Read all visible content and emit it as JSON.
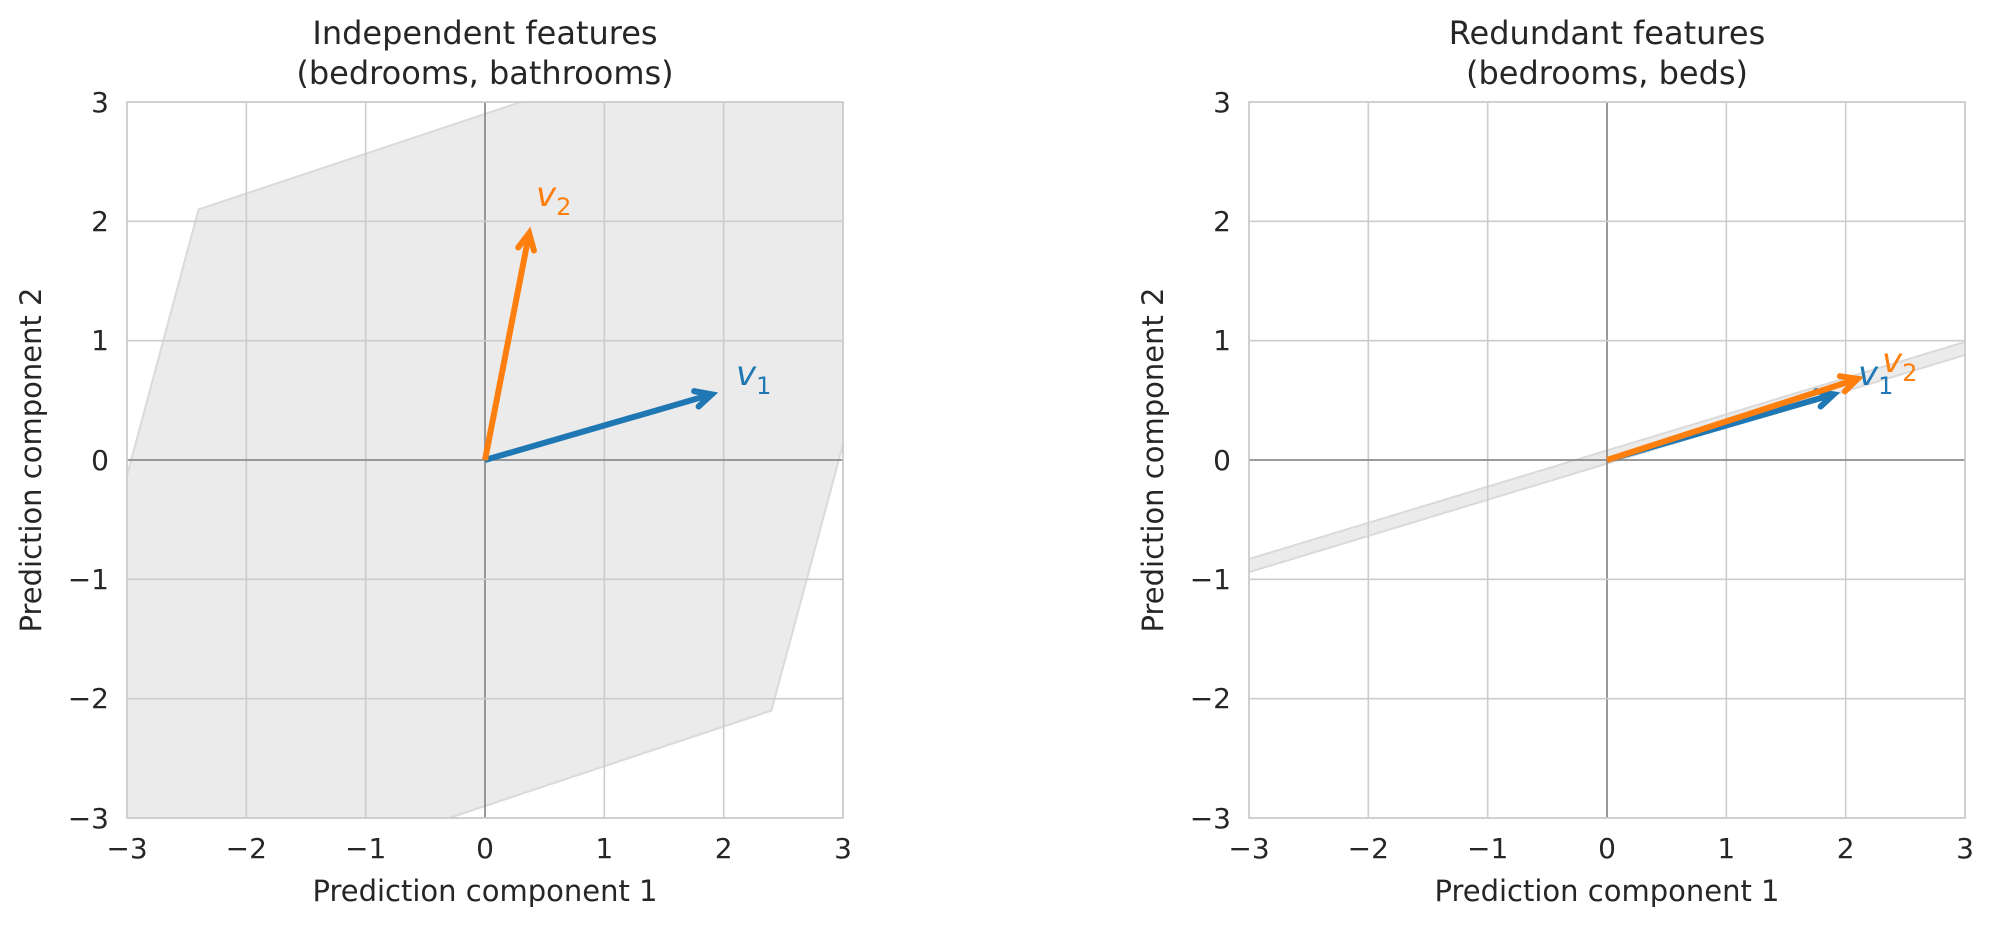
{
  "chart_data": [
    {
      "type": "line",
      "title_lines": [
        "Independent features",
        "(bedrooms, bathrooms)"
      ],
      "xlabel": "Prediction component 1",
      "ylabel": "Prediction component 2",
      "xlim": [
        -3,
        3
      ],
      "ylim": [
        -3,
        3
      ],
      "xticks": [
        "−3",
        "−2",
        "−1",
        "0",
        "1",
        "2",
        "3"
      ],
      "yticks": [
        "3",
        "2",
        "1",
        "0",
        "−1",
        "−2",
        "−3"
      ],
      "grid": true,
      "span_region": {
        "polygon": [
          [
            -2.4,
            2.1
          ],
          [
            0.6,
            3.1
          ],
          [
            3.1,
            3.1
          ],
          [
            3.1,
            0.5
          ],
          [
            2.4,
            -2.1
          ],
          [
            -0.6,
            -3.1
          ],
          [
            -3.1,
            -3.1
          ],
          [
            -3.1,
            -0.5
          ]
        ]
      },
      "vectors": [
        {
          "name": "v",
          "subscript": "1",
          "x": 1.9,
          "y": 0.55,
          "color": "#1f77b4"
        },
        {
          "name": "v",
          "subscript": "2",
          "x": 0.37,
          "y": 1.9,
          "color": "#ff7f0e"
        }
      ]
    },
    {
      "type": "line",
      "title_lines": [
        "Redundant features",
        "(bedrooms, beds)"
      ],
      "xlabel": "Prediction component 1",
      "ylabel": "Prediction component 2",
      "xlim": [
        -3,
        3
      ],
      "ylim": [
        -3,
        3
      ],
      "xticks": [
        "−3",
        "−2",
        "−1",
        "0",
        "1",
        "2",
        "3"
      ],
      "yticks": [
        "3",
        "2",
        "1",
        "0",
        "−1",
        "−2",
        "−3"
      ],
      "grid": true,
      "span_region": {
        "polygon": [
          [
            -3.1,
            -0.86
          ],
          [
            3.1,
            1.02
          ],
          [
            3.1,
            0.91
          ],
          [
            -3.1,
            -0.97
          ]
        ]
      },
      "vectors": [
        {
          "name": "v",
          "subscript": "1",
          "x": 1.9,
          "y": 0.55,
          "color": "#1f77b4"
        },
        {
          "name": "v",
          "subscript": "2",
          "x": 2.1,
          "y": 0.68,
          "color": "#ff7f0e"
        }
      ]
    }
  ],
  "style": {
    "grid_color": "#cccccc",
    "zero_line_color": "#8c8c8c",
    "span_fill": "#ebebeb",
    "span_stroke": "#dadada"
  }
}
